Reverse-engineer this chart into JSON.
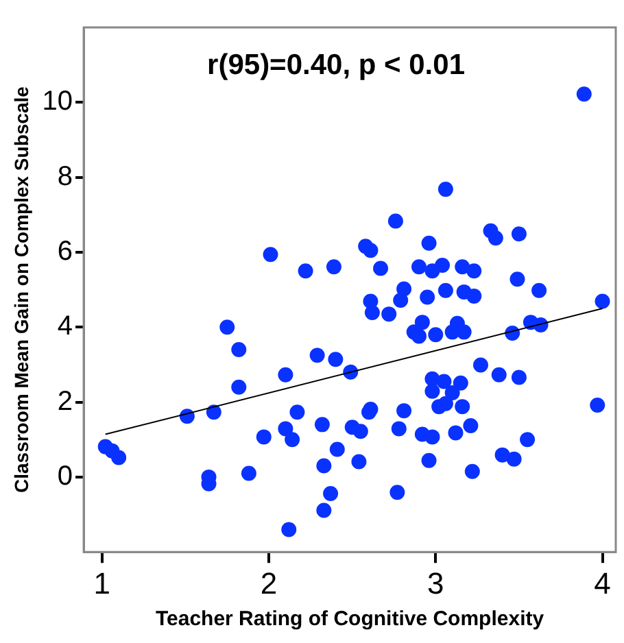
{
  "chart_data": {
    "type": "scatter",
    "xlabel": "Teacher Rating of Cognitive Complexity",
    "ylabel": "Classroom Mean Gain on Complex Subscale",
    "annotations": [
      "r(95)=0.40, p < 0.01"
    ],
    "xlim": [
      0.89,
      4.08
    ],
    "ylim": [
      -2,
      12
    ],
    "xticks": [
      1,
      2,
      3,
      4
    ],
    "yticks": [
      0,
      2,
      4,
      6,
      8,
      10
    ],
    "grid": false,
    "legend": false,
    "series": [
      {
        "color": "#0a32ff",
        "marker": "circle",
        "x": [
          1.02,
          1.06,
          1.1,
          1.51,
          1.67,
          1.64,
          1.64,
          1.75,
          1.82,
          1.82,
          1.88,
          1.97,
          2.01,
          2.1,
          2.1,
          2.14,
          2.17,
          2.12,
          2.22,
          2.29,
          2.32,
          2.33,
          2.37,
          2.33,
          2.39,
          2.4,
          2.41,
          3.06,
          2.76,
          2.58,
          2.61,
          2.96,
          3.33,
          3.36,
          3.5,
          2.67,
          2.9,
          2.98,
          3.04,
          3.16,
          3.23,
          3.49,
          3.62,
          2.81,
          2.79,
          2.95,
          3.06,
          3.17,
          3.23,
          2.61,
          2.62,
          2.72,
          2.92,
          2.87,
          2.9,
          3.0,
          3.1,
          3.13,
          3.17,
          3.46,
          3.57,
          3.63,
          4.0,
          2.49,
          3.27,
          3.38,
          3.5,
          2.98,
          3.05,
          3.15,
          2.98,
          3.1,
          3.02,
          3.06,
          3.16,
          2.6,
          2.61,
          2.81,
          2.5,
          2.55,
          2.78,
          2.92,
          2.98,
          3.12,
          3.21,
          3.55,
          3.97,
          2.54,
          2.96,
          3.4,
          3.47,
          3.22,
          2.77,
          3.89
        ],
        "values": [
          0.81,
          0.7,
          0.52,
          1.62,
          1.73,
          0.0,
          -0.18,
          4.0,
          3.4,
          2.4,
          0.1,
          1.07,
          5.94,
          2.73,
          1.29,
          1.0,
          1.73,
          -1.4,
          5.5,
          3.25,
          1.4,
          0.3,
          -0.44,
          -0.89,
          5.61,
          3.14,
          0.74,
          7.68,
          6.83,
          6.16,
          6.05,
          6.24,
          6.57,
          6.38,
          6.49,
          5.57,
          5.61,
          5.5,
          5.65,
          5.61,
          5.5,
          5.28,
          4.98,
          5.02,
          4.72,
          4.8,
          4.98,
          4.94,
          4.83,
          4.69,
          4.39,
          4.35,
          4.13,
          3.87,
          3.76,
          3.8,
          3.87,
          4.1,
          3.87,
          3.84,
          4.13,
          4.06,
          4.69,
          2.8,
          2.99,
          2.73,
          2.66,
          2.62,
          2.55,
          2.51,
          2.29,
          2.25,
          1.88,
          1.96,
          1.88,
          1.73,
          1.81,
          1.77,
          1.33,
          1.22,
          1.29,
          1.14,
          1.07,
          1.18,
          1.37,
          1.0,
          1.92,
          0.41,
          0.44,
          0.59,
          0.48,
          0.15,
          -0.41,
          10.22
        ]
      },
      {
        "type": "line",
        "marker": "none",
        "color": "#000000",
        "x": [
          1.02,
          4.0
        ],
        "values": [
          1.14,
          4.5
        ]
      }
    ]
  }
}
